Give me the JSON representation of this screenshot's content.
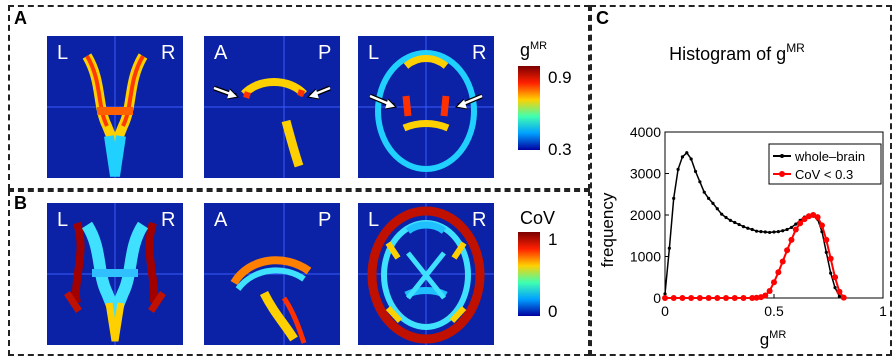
{
  "panels": {
    "a": {
      "label": "A",
      "side_labels": [
        [
          "L",
          "R"
        ],
        [
          "A",
          "P"
        ],
        [
          "L",
          "R"
        ]
      ],
      "colorbar": {
        "title": "g",
        "title_sup": "MR",
        "max": "0.9",
        "min": "0.3"
      }
    },
    "b": {
      "label": "B",
      "side_labels": [
        [
          "L",
          "R"
        ],
        [
          "A",
          "P"
        ],
        [
          "L",
          "R"
        ]
      ],
      "colorbar": {
        "title": "CoV",
        "max": "1",
        "min": "0"
      }
    },
    "c": {
      "label": "C"
    }
  },
  "colors": {
    "map_background": "#0b22a6",
    "whole_brain": "#000000",
    "cov": "#ff0000"
  },
  "chart_data": {
    "type": "line",
    "title": "Histogram of g",
    "title_sup": "MR",
    "xlabel": "g",
    "xlabel_sup": "MR",
    "ylabel": "frequency",
    "xlim": [
      0,
      1
    ],
    "ylim": [
      0,
      4000
    ],
    "xticks": [
      "0",
      "0.5",
      "1"
    ],
    "yticks": [
      "0",
      "1000",
      "2000",
      "3000",
      "4000"
    ],
    "legend": "top-right",
    "series": [
      {
        "name": "whole–brain",
        "color": "#000000",
        "x": [
          0.0,
          0.02,
          0.04,
          0.06,
          0.08,
          0.1,
          0.12,
          0.14,
          0.16,
          0.18,
          0.2,
          0.22,
          0.24,
          0.26,
          0.28,
          0.3,
          0.32,
          0.34,
          0.36,
          0.38,
          0.4,
          0.42,
          0.44,
          0.46,
          0.48,
          0.5,
          0.52,
          0.54,
          0.56,
          0.58,
          0.6,
          0.62,
          0.64,
          0.66,
          0.68,
          0.7,
          0.72,
          0.74,
          0.76,
          0.78,
          0.8,
          0.82
        ],
        "y": [
          100,
          1200,
          2400,
          3100,
          3400,
          3500,
          3350,
          3050,
          2800,
          2550,
          2400,
          2280,
          2150,
          2020,
          1940,
          1870,
          1820,
          1770,
          1720,
          1680,
          1650,
          1610,
          1600,
          1590,
          1580,
          1590,
          1600,
          1620,
          1650,
          1700,
          1780,
          1870,
          1950,
          2000,
          1980,
          1900,
          1600,
          1100,
          600,
          250,
          40,
          0
        ]
      },
      {
        "name": "CoV < 0.3",
        "color": "#ff0000",
        "x": [
          0.0,
          0.04,
          0.08,
          0.12,
          0.16,
          0.2,
          0.24,
          0.28,
          0.32,
          0.36,
          0.4,
          0.42,
          0.44,
          0.46,
          0.48,
          0.5,
          0.52,
          0.54,
          0.56,
          0.58,
          0.6,
          0.62,
          0.64,
          0.66,
          0.68,
          0.7,
          0.72,
          0.74,
          0.76,
          0.78,
          0.8,
          0.82
        ],
        "y": [
          0,
          0,
          0,
          0,
          0,
          0,
          0,
          0,
          0,
          0,
          0,
          5,
          20,
          60,
          170,
          380,
          620,
          880,
          1150,
          1400,
          1650,
          1800,
          1900,
          1970,
          2000,
          1950,
          1750,
          1400,
          950,
          500,
          150,
          10
        ]
      }
    ]
  }
}
